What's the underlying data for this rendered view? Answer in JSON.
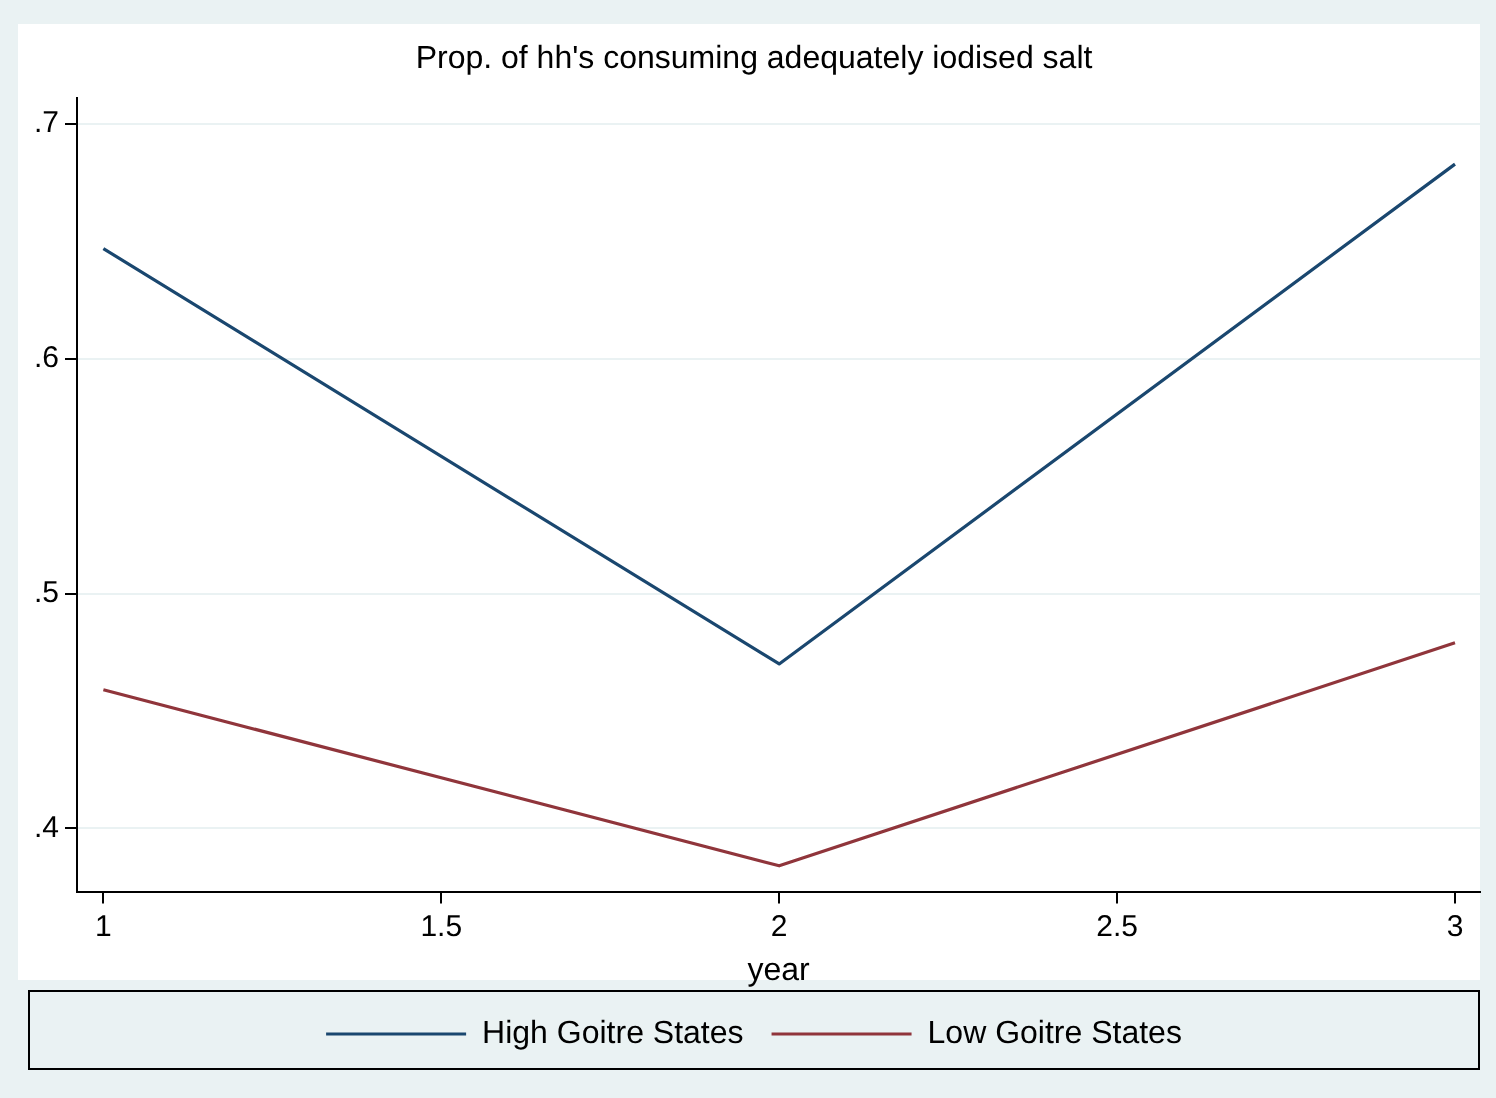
{
  "chart_data": {
    "type": "line",
    "title": "Prop. of hh's consuming adequately iodised salt",
    "xlabel": "year",
    "x": [
      1,
      2,
      3
    ],
    "series": [
      {
        "name": "High Goitre States",
        "color": "#1a476f",
        "values": [
          0.647,
          0.47,
          0.683
        ]
      },
      {
        "name": "Low Goitre States",
        "color": "#90353b",
        "values": [
          0.459,
          0.384,
          0.479
        ]
      }
    ],
    "xlim": [
      0.961,
      3.037
    ],
    "xticks": [
      1,
      1.5,
      2,
      2.5,
      3
    ],
    "ylim": [
      0.373,
      0.711
    ],
    "yticks": [
      {
        "value": 0.4,
        "label": ".4"
      },
      {
        "value": 0.5,
        "label": ".5"
      },
      {
        "value": 0.6,
        "label": ".6"
      },
      {
        "value": 0.7,
        "label": ".7"
      }
    ],
    "grid": "y",
    "legend": "bottom",
    "marker": "none",
    "line_style": "solid"
  }
}
